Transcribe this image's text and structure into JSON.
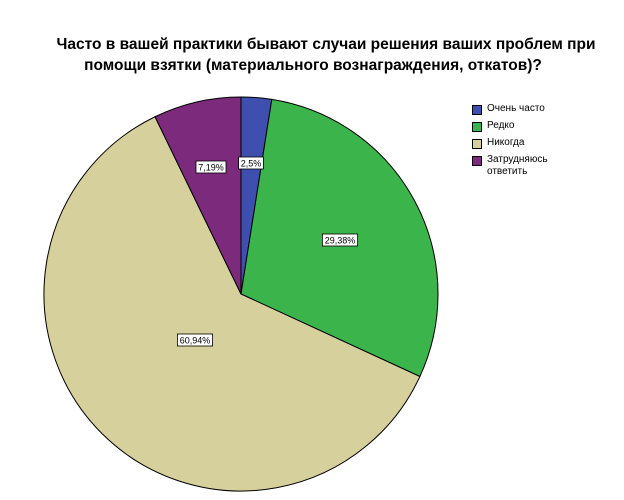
{
  "chart_data": {
    "type": "pie",
    "title_lines": [
      "Часто в вашей практики бывают случаи решения ваших проблем при",
      "помощи взятки (материального вознаграждения, откатов)?"
    ],
    "categories": [
      "Очень часто",
      "Редко",
      "Никогда",
      "Затрудняюсь ответить"
    ],
    "values": [
      2.5,
      29.38,
      60.94,
      7.19
    ],
    "data_labels": [
      "2,5%",
      "29,38%",
      "60,94%",
      "7,19%"
    ],
    "colors": [
      "#3e4fb0",
      "#3bb54b",
      "#d6d09c",
      "#7b2a7c"
    ],
    "legend_position": "right",
    "start_angle_deg": 0,
    "direction": "clockwise"
  }
}
